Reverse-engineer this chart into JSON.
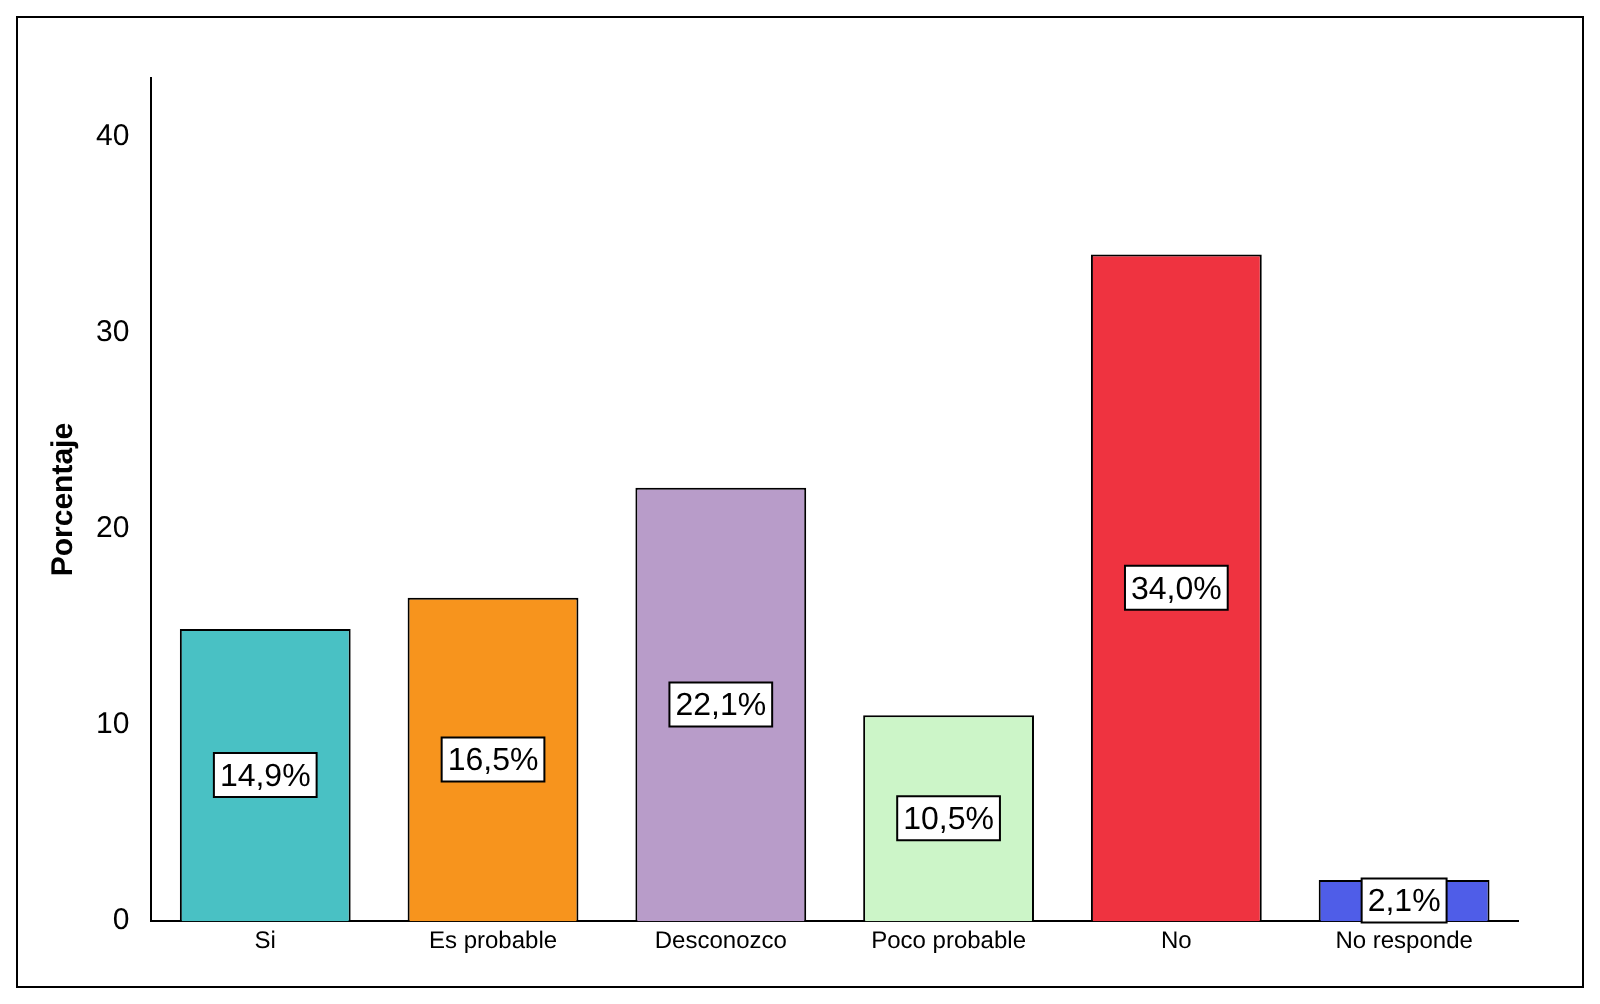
{
  "chart_data": {
    "type": "bar",
    "ylabel": "Porcentaje",
    "categories": [
      "Si",
      "Es probable",
      "Desconozco",
      "Poco probable",
      "No",
      "No responde"
    ],
    "values": [
      14.9,
      16.5,
      22.1,
      10.5,
      34.0,
      2.1
    ],
    "colors": [
      "#49c1c4",
      "#f7941d",
      "#b89cc9",
      "#ccf5c8",
      "#ef3340",
      "#4f5de8"
    ],
    "value_labels": [
      "14,9%",
      "16,5%",
      "22,1%",
      "10,5%",
      "34,0%",
      "2,1%"
    ],
    "ylim": [
      0,
      43
    ],
    "yticks": [
      0,
      10,
      20,
      30,
      40
    ],
    "grid": false,
    "legend": false
  }
}
